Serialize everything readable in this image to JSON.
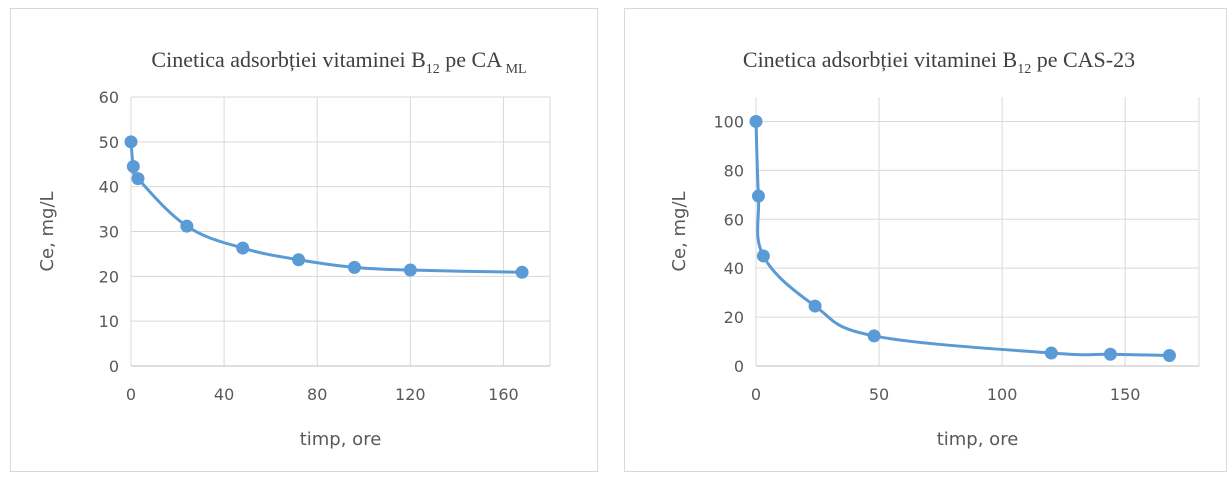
{
  "colors": {
    "series": "#5b9bd5",
    "grid": "#d9d9d9",
    "text": "#595959"
  },
  "chart_data": [
    {
      "type": "scatter",
      "title": {
        "main": "Cinetica adsorbției vitaminei B",
        "sub": "12",
        "tail": " pe CA",
        "tail_sub": "ML"
      },
      "xlabel": "timp, ore",
      "ylabel": "Ce, mg/L",
      "xlim": [
        0,
        180
      ],
      "ylim": [
        0,
        60
      ],
      "xticks": [
        "0",
        "40",
        "80",
        "120",
        "160"
      ],
      "xtick_values": [
        0,
        40,
        80,
        120,
        160
      ],
      "yticks": [
        "0",
        "10",
        "20",
        "30",
        "40",
        "50",
        "60"
      ],
      "ytick_values": [
        0,
        10,
        20,
        30,
        40,
        50,
        60
      ],
      "grid": true,
      "legend": "none",
      "series": [
        {
          "x": [
            0,
            1,
            3,
            24,
            48,
            72,
            96,
            120,
            168
          ],
          "y": [
            50,
            44.5,
            41.8,
            31.2,
            26.3,
            23.7,
            22,
            21.4,
            20.9
          ],
          "marker": "circle",
          "line": "smooth"
        }
      ]
    },
    {
      "type": "scatter",
      "title": {
        "main": "Cinetica adsorbției vitaminei B",
        "sub": "12",
        "tail": " pe CAS-23",
        "tail_sub": ""
      },
      "xlabel": "timp, ore",
      "ylabel": "Ce, mg/L",
      "xlim": [
        0,
        180
      ],
      "ylim": [
        0,
        110
      ],
      "xticks": [
        "0",
        "50",
        "100",
        "150"
      ],
      "xtick_values": [
        0,
        50,
        100,
        150
      ],
      "yticks": [
        "0",
        "20",
        "40",
        "60",
        "80",
        "100"
      ],
      "ytick_values": [
        0,
        20,
        40,
        60,
        80,
        100
      ],
      "grid": true,
      "legend": "none",
      "series": [
        {
          "x": [
            0,
            1,
            3,
            24,
            48,
            120,
            144,
            168
          ],
          "y": [
            100,
            69.5,
            45,
            24.5,
            12.3,
            5.3,
            4.8,
            4.3
          ],
          "marker": "circle",
          "line": "smooth"
        }
      ]
    }
  ]
}
